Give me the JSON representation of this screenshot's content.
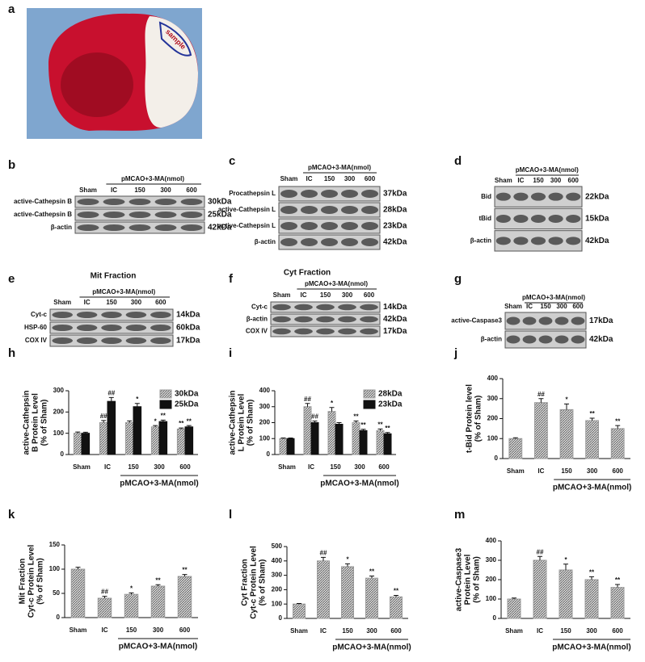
{
  "panels": [
    {
      "label": "a",
      "caption": "sample"
    },
    {
      "label": "b",
      "header": "pMCAO+3-MA(nmol)",
      "lanes": [
        "Sham",
        "IC",
        "150",
        "300",
        "600"
      ],
      "rows": [
        {
          "name": "active-Cathepsin B",
          "size": "30kDa"
        },
        {
          "name": "active-Cathepsin B",
          "size": "25kDa"
        },
        {
          "name": "β-actin",
          "size": "42kDa"
        }
      ]
    },
    {
      "label": "c",
      "header": "pMCAO+3-MA(nmol)",
      "lanes": [
        "Sham",
        "IC",
        "150",
        "300",
        "600"
      ],
      "rows": [
        {
          "name": "Procathepsin L",
          "size": "37kDa"
        },
        {
          "name": "active-Cathepsin L",
          "size": "28kDa"
        },
        {
          "name": "active-Cathepsin L",
          "size": "23kDa"
        },
        {
          "name": "β-actin",
          "size": "42kDa"
        }
      ]
    },
    {
      "label": "d",
      "header": "pMCAO+3-MA(nmol)",
      "lanes": [
        "Sham",
        "IC",
        "150",
        "300",
        "600"
      ],
      "rows": [
        {
          "name": "Bid",
          "size": "22kDa"
        },
        {
          "name": "tBid",
          "size": "15kDa"
        },
        {
          "name": "β-actin",
          "size": "42kDa"
        }
      ]
    },
    {
      "label": "e",
      "title": "Mit Fraction",
      "header": "pMCAO+3-MA(nmol)",
      "lanes": [
        "Sham",
        "IC",
        "150",
        "300",
        "600"
      ],
      "rows": [
        {
          "name": "Cyt-c",
          "size": "14kDa"
        },
        {
          "name": "HSP-60",
          "size": "60kDa"
        },
        {
          "name": "COX IV",
          "size": "17kDa"
        }
      ]
    },
    {
      "label": "f",
      "title": "Cyt Fraction",
      "header": "pMCAO+3-MA(nmol)",
      "lanes": [
        "Sham",
        "IC",
        "150",
        "300",
        "600"
      ],
      "rows": [
        {
          "name": "Cyt-c",
          "size": "14kDa"
        },
        {
          "name": "β-actin",
          "size": "42kDa"
        },
        {
          "name": "COX IV",
          "size": "17kDa"
        }
      ]
    },
    {
      "label": "g",
      "header": "pMCAO+3-MA(nmol)",
      "lanes": [
        "Sham",
        "IC",
        "150",
        "300",
        "600"
      ],
      "rows": [
        {
          "name": "active-Caspase3",
          "size": "17kDa"
        },
        {
          "name": "β-actin",
          "size": "42kDa"
        }
      ]
    }
  ],
  "chart_data": [
    {
      "type": "bar",
      "label": "h",
      "ylabel": [
        "active-Cathepsin",
        "B Protein Level",
        "(% of Sham)"
      ],
      "xlabel": "pMCAO+3-MA(nmol)",
      "categories": [
        "Sham",
        "IC",
        "150",
        "300",
        "600"
      ],
      "ylim": [
        0,
        300
      ],
      "yticks": [
        0,
        100,
        200,
        300
      ],
      "series": [
        {
          "name": "30kDa",
          "color": "#9a9a9a",
          "hatch": true,
          "values": [
            100,
            150,
            150,
            130,
            120
          ],
          "errors": [
            6,
            10,
            8,
            6,
            5
          ],
          "marks": [
            null,
            "##",
            null,
            "*",
            "**"
          ]
        },
        {
          "name": "25kDa",
          "color": "#111111",
          "hatch": false,
          "values": [
            100,
            250,
            225,
            155,
            130
          ],
          "errors": [
            5,
            18,
            15,
            7,
            6
          ],
          "marks": [
            null,
            "##",
            "*",
            "**",
            "**"
          ]
        }
      ]
    },
    {
      "type": "bar",
      "label": "i",
      "ylabel": [
        "active-Cathepsin",
        "L Protein Level",
        "(% of Sham)"
      ],
      "xlabel": "pMCAO+3-MA(nmol)",
      "categories": [
        "Sham",
        "IC",
        "150",
        "300",
        "600"
      ],
      "ylim": [
        0,
        400
      ],
      "yticks": [
        0,
        100,
        200,
        300,
        400
      ],
      "series": [
        {
          "name": "28kDa",
          "color": "#9a9a9a",
          "hatch": true,
          "values": [
            100,
            300,
            270,
            200,
            150
          ],
          "errors": [
            4,
            20,
            25,
            10,
            10
          ],
          "marks": [
            null,
            "##",
            "*",
            "**",
            "**"
          ]
        },
        {
          "name": "23kDa",
          "color": "#111111",
          "hatch": false,
          "values": [
            100,
            200,
            190,
            150,
            130
          ],
          "errors": [
            4,
            10,
            10,
            8,
            8
          ],
          "marks": [
            null,
            "##",
            null,
            "**",
            "**"
          ]
        }
      ]
    },
    {
      "type": "bar",
      "label": "j",
      "ylabel": [
        "t-Bid Protein level",
        "(% of Sham)"
      ],
      "xlabel": "pMCAO+3-MA(nmol)",
      "categories": [
        "Sham",
        "IC",
        "150",
        "300",
        "600"
      ],
      "ylim": [
        0,
        400
      ],
      "yticks": [
        0,
        100,
        200,
        300,
        400
      ],
      "series": [
        {
          "name": null,
          "color": "#9a9a9a",
          "hatch": true,
          "values": [
            100,
            280,
            245,
            190,
            150
          ],
          "errors": [
            4,
            20,
            28,
            12,
            15
          ],
          "marks": [
            null,
            "##",
            "*",
            "**",
            "**"
          ]
        }
      ]
    },
    {
      "type": "bar",
      "label": "k",
      "ylabel": [
        "Mit Fraction",
        "Cyt-c Protein Level",
        "(% of Sham)"
      ],
      "xlabel": "pMCAO+3-MA(nmol)",
      "categories": [
        "Sham",
        "IC",
        "150",
        "300",
        "600"
      ],
      "ylim": [
        0,
        150
      ],
      "yticks": [
        0,
        50,
        100,
        150
      ],
      "series": [
        {
          "name": null,
          "color": "#9a9a9a",
          "hatch": true,
          "values": [
            100,
            40,
            48,
            65,
            85
          ],
          "errors": [
            4,
            4,
            3,
            3,
            4
          ],
          "marks": [
            null,
            "##",
            "*",
            "**",
            "**"
          ]
        }
      ]
    },
    {
      "type": "bar",
      "label": "l",
      "ylabel": [
        "Cyt Fraction",
        "Cyt-c Protein Level",
        "(% of Sham)"
      ],
      "xlabel": "pMCAO+3-MA(nmol)",
      "categories": [
        "Sham",
        "IC",
        "150",
        "300",
        "600"
      ],
      "ylim": [
        0,
        500
      ],
      "yticks": [
        0,
        100,
        200,
        300,
        400,
        500
      ],
      "series": [
        {
          "name": null,
          "color": "#9a9a9a",
          "hatch": true,
          "values": [
            100,
            400,
            360,
            280,
            150
          ],
          "errors": [
            4,
            25,
            20,
            15,
            10
          ],
          "marks": [
            null,
            "##",
            "*",
            "**",
            "**"
          ]
        }
      ]
    },
    {
      "type": "bar",
      "label": "m",
      "ylabel": [
        "active-Caspase3",
        "Protein Level",
        "(% of Sham)"
      ],
      "xlabel": "pMCAO+3-MA(nmol)",
      "categories": [
        "Sham",
        "IC",
        "150",
        "300",
        "600"
      ],
      "ylim": [
        0,
        400
      ],
      "yticks": [
        0,
        100,
        200,
        300,
        400
      ],
      "series": [
        {
          "name": null,
          "color": "#9a9a9a",
          "hatch": true,
          "values": [
            100,
            300,
            250,
            200,
            160
          ],
          "errors": [
            5,
            20,
            30,
            15,
            15
          ],
          "marks": [
            null,
            "##",
            "*",
            "**",
            "**"
          ]
        }
      ]
    }
  ]
}
